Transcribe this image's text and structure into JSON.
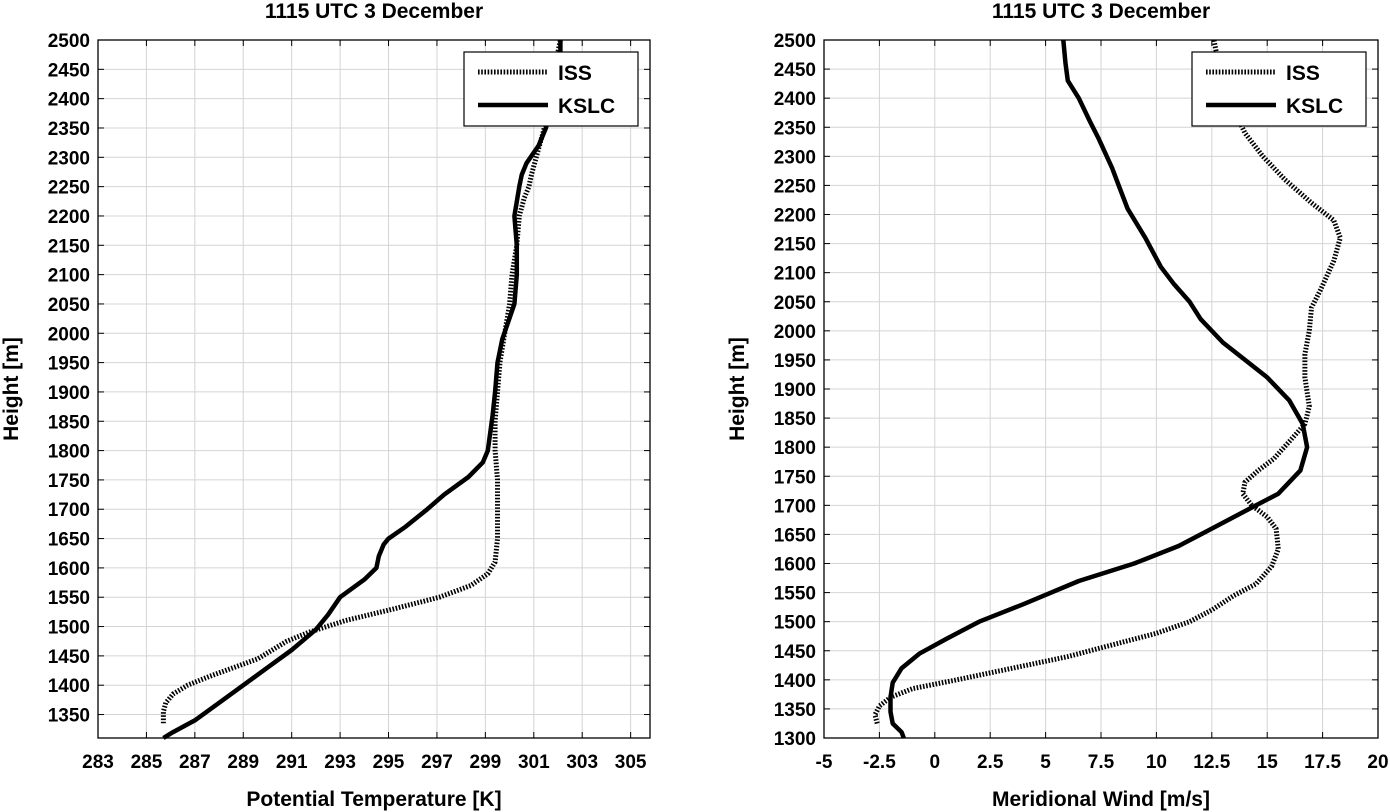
{
  "chart_data": [
    {
      "type": "line",
      "title": "1115 UTC 3 December",
      "xlabel": "Potential Temperature [K]",
      "ylabel": "Height [m]",
      "xlim": [
        283,
        305.8
      ],
      "ylim": [
        1310,
        2500
      ],
      "xticks": [
        283,
        285,
        287,
        289,
        291,
        293,
        295,
        297,
        299,
        301,
        303,
        305
      ],
      "yticks": [
        1350,
        1400,
        1450,
        1500,
        1550,
        1600,
        1650,
        1700,
        1750,
        1800,
        1850,
        1900,
        1950,
        2000,
        2050,
        2100,
        2150,
        2200,
        2250,
        2300,
        2350,
        2400,
        2450,
        2500
      ],
      "grid": true,
      "legend_position": "top-right",
      "series": [
        {
          "name": "ISS",
          "style": "dotted",
          "color": "#000000",
          "x": [
            285.7,
            285.7,
            285.8,
            286.1,
            286.7,
            287.6,
            288.6,
            289.6,
            290.2,
            290.8,
            291.7,
            293.2,
            295.2,
            297.1,
            298.4,
            299.1,
            299.4,
            299.5,
            299.5,
            299.5,
            299.4,
            299.4,
            299.5,
            299.6,
            299.8,
            300.0,
            300.1,
            300.3,
            300.4,
            300.6,
            300.8,
            300.9,
            301.1,
            301.3,
            301.5,
            301.7,
            301.9,
            302.0,
            302.1
          ],
          "y": [
            1335,
            1355,
            1370,
            1385,
            1400,
            1415,
            1430,
            1445,
            1460,
            1475,
            1490,
            1510,
            1530,
            1550,
            1570,
            1590,
            1610,
            1650,
            1700,
            1750,
            1800,
            1850,
            1900,
            1950,
            2000,
            2050,
            2100,
            2150,
            2200,
            2230,
            2250,
            2270,
            2300,
            2330,
            2360,
            2400,
            2440,
            2480,
            2500
          ]
        },
        {
          "name": "KSLC",
          "style": "solid",
          "color": "#000000",
          "x": [
            285.7,
            286.1,
            287.0,
            288.0,
            289.0,
            290.0,
            291.0,
            292.0,
            292.5,
            293.0,
            294.0,
            294.5,
            294.6,
            294.8,
            295.0,
            295.7,
            296.6,
            297.3,
            298.3,
            298.9,
            299.1,
            299.2,
            299.3,
            299.4,
            299.5,
            299.7,
            300.2,
            300.3,
            300.3,
            300.2,
            300.4,
            300.5,
            300.7,
            301.2,
            301.5,
            301.8,
            302.0,
            302.1,
            302.1
          ],
          "y": [
            1310,
            1320,
            1340,
            1370,
            1400,
            1430,
            1460,
            1495,
            1520,
            1550,
            1580,
            1600,
            1620,
            1640,
            1650,
            1670,
            1700,
            1725,
            1755,
            1780,
            1800,
            1830,
            1860,
            1900,
            1950,
            1990,
            2050,
            2100,
            2150,
            2200,
            2250,
            2270,
            2290,
            2320,
            2350,
            2400,
            2440,
            2480,
            2500
          ]
        }
      ]
    },
    {
      "type": "line",
      "title": "1115 UTC 3 December",
      "xlabel": "Meridional Wind [m/s]",
      "ylabel": "Height [m]",
      "xlim": [
        -5,
        20
      ],
      "ylim": [
        1300,
        2500
      ],
      "xticks": [
        -5,
        -2.5,
        0,
        2.5,
        5,
        7.5,
        10,
        12.5,
        15,
        17.5,
        20
      ],
      "yticks": [
        1300,
        1350,
        1400,
        1450,
        1500,
        1550,
        1600,
        1650,
        1700,
        1750,
        1800,
        1850,
        1900,
        1950,
        2000,
        2050,
        2100,
        2150,
        2200,
        2250,
        2300,
        2350,
        2400,
        2450,
        2500
      ],
      "grid": true,
      "legend_position": "top-right",
      "series": [
        {
          "name": "ISS",
          "style": "dotted",
          "color": "#000000",
          "x": [
            -2.6,
            -2.7,
            -2.5,
            -2.0,
            -1.0,
            1.0,
            3.5,
            6.0,
            8.0,
            10.0,
            11.5,
            12.5,
            13.5,
            14.5,
            15.2,
            15.5,
            15.4,
            15.0,
            14.3,
            13.9,
            14.0,
            14.6,
            15.3,
            16.0,
            16.7,
            16.9,
            16.7,
            16.7,
            16.9,
            17.0,
            17.4,
            18.0,
            18.3,
            18.0,
            17.0,
            15.8,
            14.8,
            14.0,
            13.5,
            13.1,
            12.8,
            12.6
          ],
          "y": [
            1325,
            1340,
            1355,
            1370,
            1385,
            1400,
            1420,
            1440,
            1460,
            1480,
            1500,
            1520,
            1545,
            1565,
            1595,
            1625,
            1660,
            1680,
            1700,
            1720,
            1740,
            1760,
            1780,
            1810,
            1840,
            1870,
            1920,
            1960,
            2000,
            2040,
            2070,
            2120,
            2160,
            2190,
            2220,
            2260,
            2300,
            2340,
            2380,
            2420,
            2460,
            2500
          ]
        },
        {
          "name": "KSLC",
          "style": "solid",
          "color": "#000000",
          "x": [
            -1.4,
            -1.5,
            -1.9,
            -2.0,
            -2.0,
            -1.9,
            -1.5,
            -0.7,
            0.5,
            2.0,
            4.0,
            6.5,
            9.0,
            11.0,
            12.5,
            14.0,
            15.5,
            16.5,
            16.8,
            16.6,
            16.0,
            15.0,
            14.0,
            13.0,
            12.0,
            11.5,
            10.8,
            10.2,
            9.5,
            8.7,
            8.3,
            8.0,
            7.4,
            7.0,
            6.5,
            6.0,
            5.9,
            5.8
          ],
          "y": [
            1300,
            1310,
            1325,
            1345,
            1370,
            1395,
            1420,
            1445,
            1470,
            1500,
            1530,
            1570,
            1600,
            1630,
            1660,
            1690,
            1720,
            1760,
            1800,
            1840,
            1880,
            1920,
            1950,
            1980,
            2020,
            2050,
            2080,
            2110,
            2160,
            2210,
            2250,
            2280,
            2330,
            2360,
            2400,
            2430,
            2460,
            2500
          ]
        }
      ]
    }
  ]
}
